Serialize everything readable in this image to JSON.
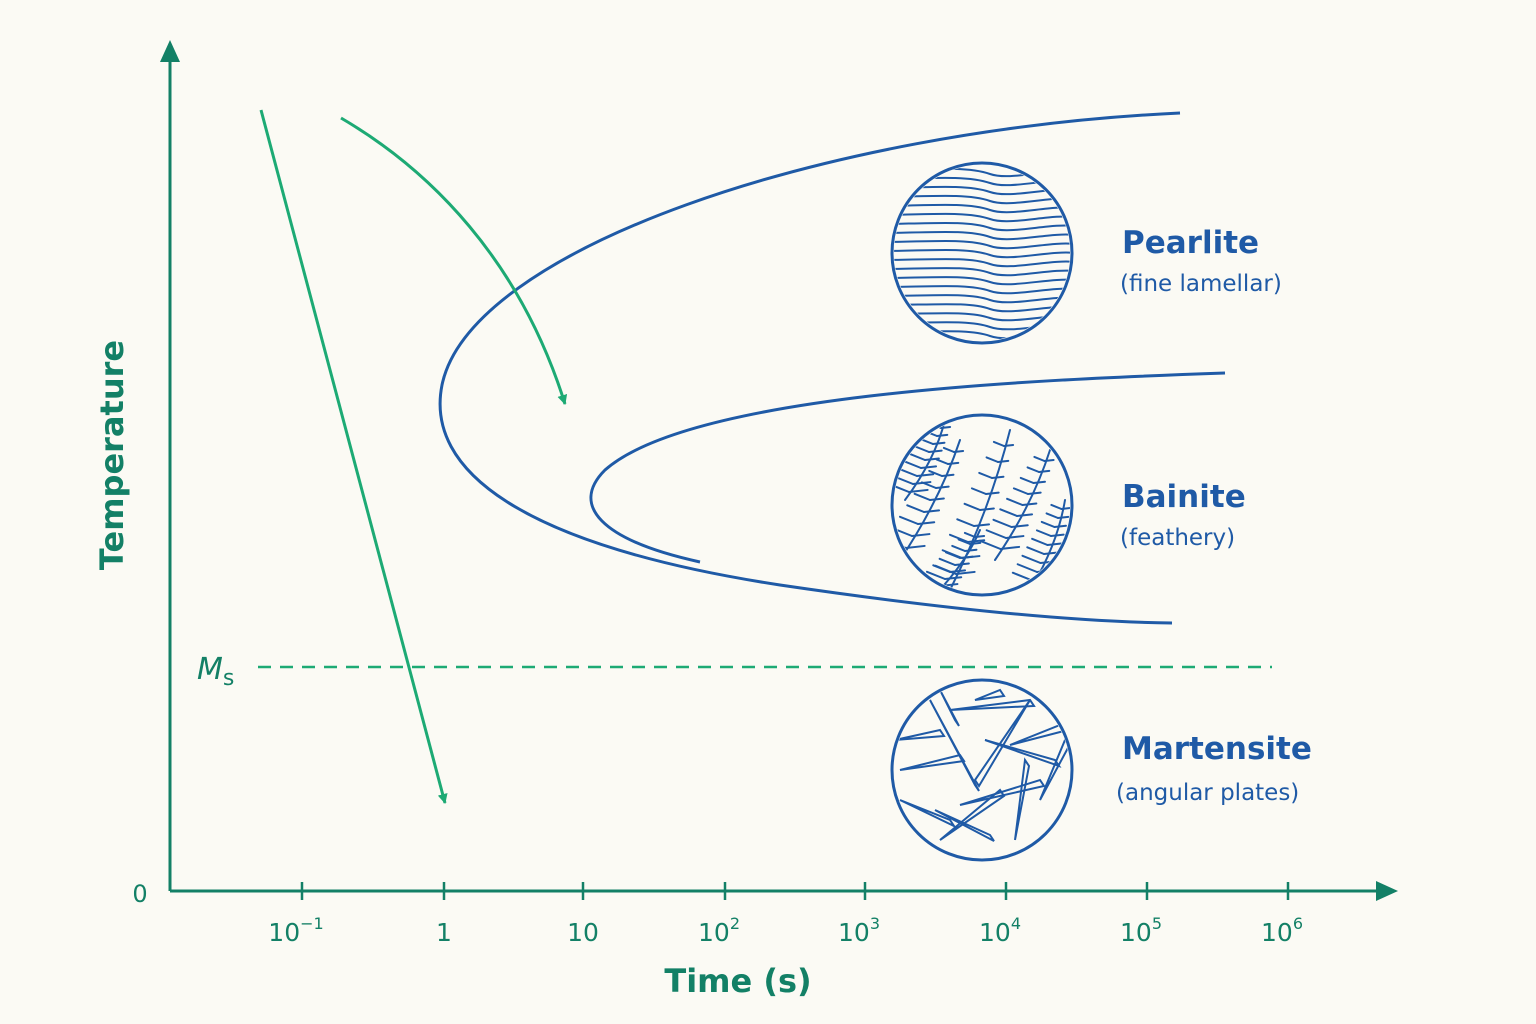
{
  "axes": {
    "y_label": "Temperature",
    "x_label": "Time (s)",
    "origin": "0",
    "ms_label": {
      "main": "M",
      "sub": "s"
    },
    "x_ticks": [
      {
        "base": "10",
        "exp": "−1"
      },
      {
        "base": "1"
      },
      {
        "base": "10"
      },
      {
        "base": "10",
        "exp": "2"
      },
      {
        "base": "10",
        "exp": "3"
      },
      {
        "base": "10",
        "exp": "4"
      },
      {
        "base": "10",
        "exp": "5"
      },
      {
        "base": "10",
        "exp": "6"
      }
    ]
  },
  "phases": [
    {
      "name": "Pearlite",
      "note": "(fine lamellar)"
    },
    {
      "name": "Bainite",
      "note": "(feathery)"
    },
    {
      "name": "Martensite",
      "note": "(angular plates)"
    }
  ]
}
